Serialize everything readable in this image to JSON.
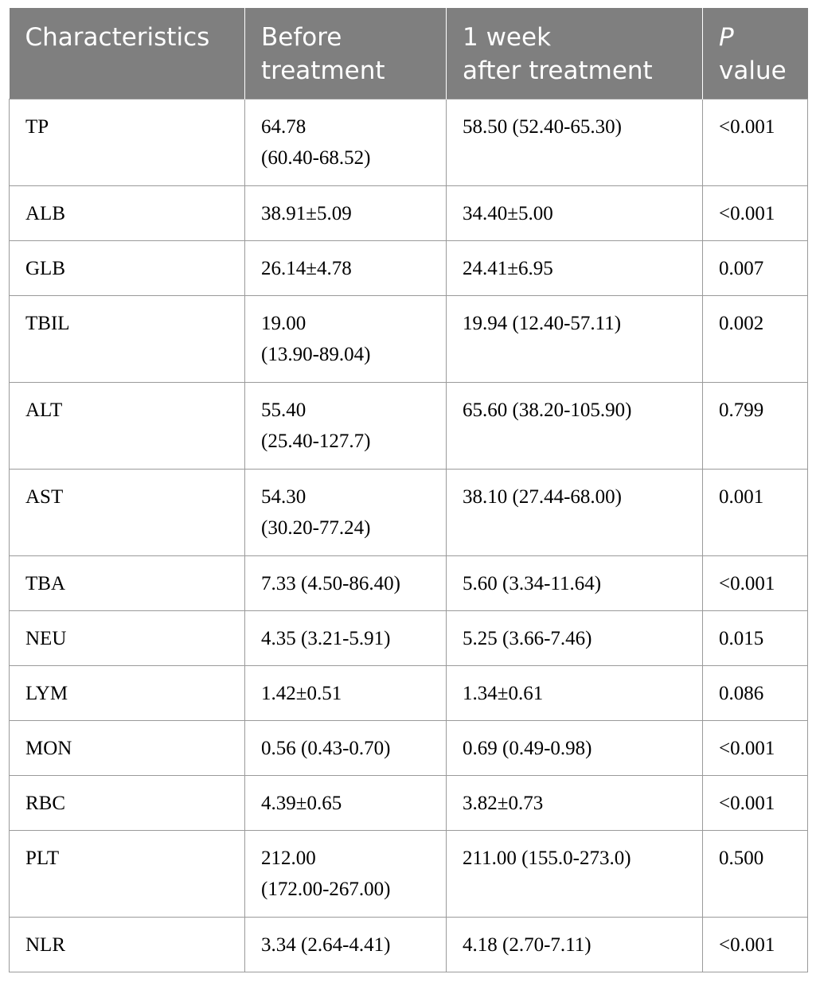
{
  "table": {
    "headers": [
      "Characteristics",
      "Before\ntreatment",
      "1 week\nafter treatment",
      [
        "P",
        "\nvalue"
      ]
    ],
    "rows": [
      {
        "name": "TP",
        "before": "64.78\n(60.40-68.52)",
        "after": "58.50 (52.40-65.30)",
        "p": "<0.001"
      },
      {
        "name": "ALB",
        "before": "38.91±5.09",
        "after": "34.40±5.00",
        "p": "<0.001"
      },
      {
        "name": "GLB",
        "before": "26.14±4.78",
        "after": "24.41±6.95",
        "p": "0.007"
      },
      {
        "name": "TBIL",
        "before": "19.00\n(13.90-89.04)",
        "after": "19.94 (12.40-57.11)",
        "p": "0.002"
      },
      {
        "name": "ALT",
        "before": "55.40\n(25.40-127.7)",
        "after": "65.60 (38.20-105.90)",
        "p": "0.799"
      },
      {
        "name": "AST",
        "before": "54.30\n(30.20-77.24)",
        "after": "38.10 (27.44-68.00)",
        "p": "0.001"
      },
      {
        "name": "TBA",
        "before": "7.33 (4.50-86.40)",
        "after": "5.60 (3.34-11.64)",
        "p": "<0.001"
      },
      {
        "name": "NEU",
        "before": "4.35 (3.21-5.91)",
        "after": "5.25 (3.66-7.46)",
        "p": "0.015"
      },
      {
        "name": "LYM",
        "before": "1.42±0.51",
        "after": "1.34±0.61",
        "p": "0.086"
      },
      {
        "name": "MON",
        "before": "0.56 (0.43-0.70)",
        "after": "0.69 (0.49-0.98)",
        "p": "<0.001"
      },
      {
        "name": "RBC",
        "before": "4.39±0.65",
        "after": "3.82±0.73",
        "p": "<0.001"
      },
      {
        "name": "PLT",
        "before": "212.00\n(172.00-267.00)",
        "after": "211.00 (155.0-273.0)",
        "p": "0.500"
      },
      {
        "name": "NLR",
        "before": "3.34 (2.64-4.41)",
        "after": "4.18 (2.70-7.11)",
        "p": "<0.001"
      }
    ]
  }
}
